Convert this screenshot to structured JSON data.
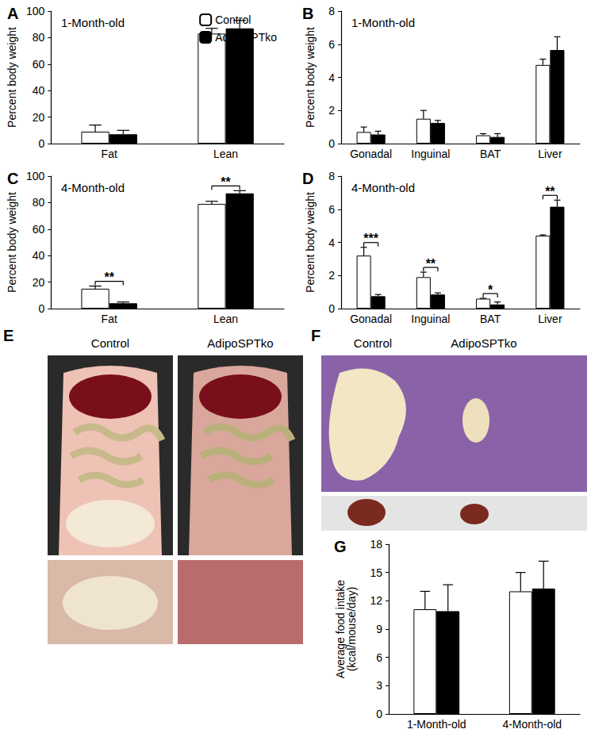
{
  "chart_data": [
    {
      "panel": "A",
      "type": "bar",
      "subtitle": "1-Month-old",
      "y_label": "Percent body weight",
      "categories": [
        "Fat",
        "Lean"
      ],
      "series": [
        {
          "name": "Control",
          "color": "#ffffff",
          "values": [
            9,
            83
          ],
          "errors": [
            5,
            4
          ]
        },
        {
          "name": "AdipoSPTko",
          "color": "#000000",
          "values": [
            7,
            87
          ],
          "errors": [
            3,
            6
          ]
        }
      ],
      "ylim": [
        0,
        100
      ],
      "yticks": [
        0,
        20,
        40,
        60,
        80,
        100
      ],
      "grid": false,
      "legend": "upper right"
    },
    {
      "panel": "B",
      "type": "bar",
      "subtitle": "1-Month-old",
      "y_label": "Percent body weight",
      "categories": [
        "Gonadal",
        "Inguinal",
        "BAT",
        "Liver"
      ],
      "series": [
        {
          "name": "Control",
          "color": "#ffffff",
          "values": [
            0.7,
            1.5,
            0.5,
            4.75
          ],
          "errors": [
            0.3,
            0.5,
            0.1,
            0.35
          ]
        },
        {
          "name": "AdipoSPTko",
          "color": "#000000",
          "values": [
            0.55,
            1.25,
            0.4,
            5.65
          ],
          "errors": [
            0.2,
            0.15,
            0.2,
            0.8
          ]
        }
      ],
      "ylim": [
        0,
        8
      ],
      "yticks": [
        0,
        2,
        4,
        6,
        8
      ],
      "grid": false
    },
    {
      "panel": "C",
      "type": "bar",
      "subtitle": "4-Month-old",
      "y_label": "Percent body weight",
      "categories": [
        "Fat",
        "Lean"
      ],
      "series": [
        {
          "name": "Control",
          "color": "#ffffff",
          "values": [
            15,
            79
          ],
          "errors": [
            2,
            2
          ]
        },
        {
          "name": "AdipoSPTko",
          "color": "#000000",
          "values": [
            4,
            87
          ],
          "errors": [
            1,
            2
          ]
        }
      ],
      "annotations": [
        {
          "category": "Fat",
          "text": "**"
        },
        {
          "category": "Lean",
          "text": "**"
        }
      ],
      "ylim": [
        0,
        100
      ],
      "yticks": [
        0,
        20,
        40,
        60,
        80,
        100
      ],
      "grid": false
    },
    {
      "panel": "D",
      "type": "bar",
      "subtitle": "4-Month-old",
      "y_label": "Percent body weight",
      "categories": [
        "Gonadal",
        "Inguinal",
        "BAT",
        "Liver"
      ],
      "series": [
        {
          "name": "Control",
          "color": "#ffffff",
          "values": [
            3.2,
            1.9,
            0.6,
            4.4
          ],
          "errors": [
            0.5,
            0.3,
            0.02,
            0.05
          ]
        },
        {
          "name": "AdipoSPTko",
          "color": "#000000",
          "values": [
            0.75,
            0.85,
            0.25,
            6.15
          ],
          "errors": [
            0.1,
            0.1,
            0.15,
            0.4
          ]
        }
      ],
      "annotations": [
        {
          "category": "Gonadal",
          "text": "***"
        },
        {
          "category": "Inguinal",
          "text": "**"
        },
        {
          "category": "BAT",
          "text": "*"
        },
        {
          "category": "Liver",
          "text": "**"
        }
      ],
      "ylim": [
        0,
        8
      ],
      "yticks": [
        0,
        2,
        4,
        6,
        8
      ],
      "grid": false
    },
    {
      "panel": "G",
      "type": "bar",
      "y_label": "Average food intake\n(kcal/mouse/day)",
      "categories": [
        "1-Month-old",
        "4-Month-old"
      ],
      "series": [
        {
          "name": "Control",
          "color": "#ffffff",
          "values": [
            11.1,
            13.0
          ],
          "errors": [
            1.9,
            2.0
          ]
        },
        {
          "name": "AdipoSPTko",
          "color": "#000000",
          "values": [
            10.9,
            13.3
          ],
          "errors": [
            2.8,
            2.9
          ]
        }
      ],
      "ylim": [
        0,
        18
      ],
      "yticks": [
        0,
        3,
        6,
        9,
        12,
        15,
        18
      ],
      "grid": false
    }
  ],
  "photos": [
    {
      "panel": "E",
      "labels": [
        "Control",
        "AdipoSPTko"
      ]
    },
    {
      "panel": "F",
      "labels": [
        "Control",
        "AdipoSPTko"
      ]
    }
  ]
}
